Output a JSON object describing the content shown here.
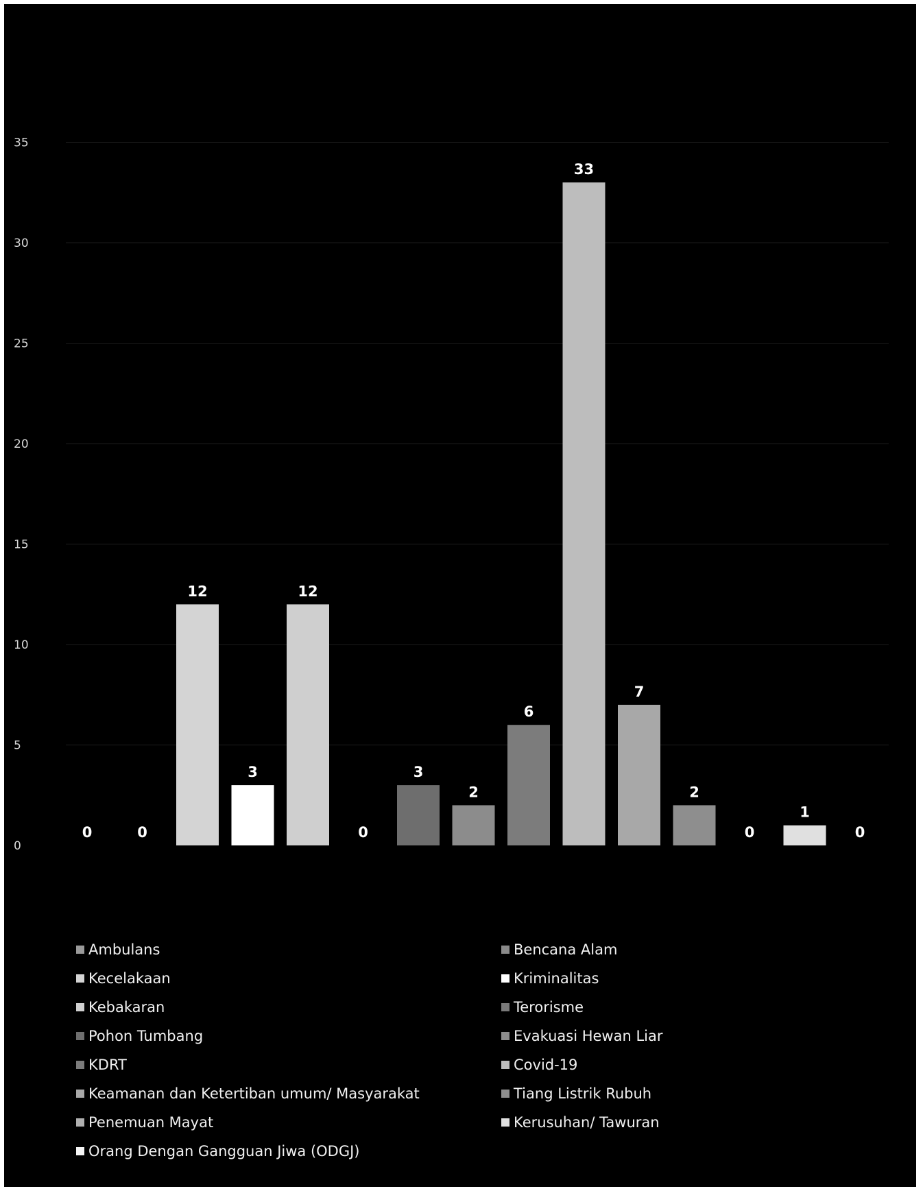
{
  "chart_data": {
    "type": "bar",
    "title": "",
    "xlabel": "",
    "ylabel": "",
    "ylim": [
      0,
      40
    ],
    "yticks": [
      0,
      5,
      10,
      15,
      20,
      25,
      30,
      35
    ],
    "grid": true,
    "legend_position": "bottom",
    "categories": [
      "Ambulans",
      "Bencana Alam",
      "Kecelakaan",
      "Kriminalitas",
      "Kebakaran",
      "Terorisme",
      "Pohon Tumbang",
      "Evakuasi Hewan Liar",
      "KDRT",
      "Covid-19",
      "Keamanan dan Ketertiban umum/ Masyarakat",
      "Tiang Listrik Rubuh",
      "Penemuan Mayat",
      "Kerusuhan/ Tawuran",
      "Orang Dengan Gangguan Jiwa (ODGJ)"
    ],
    "values": [
      0,
      0,
      12,
      3,
      12,
      0,
      3,
      2,
      6,
      33,
      7,
      2,
      0,
      1,
      0
    ],
    "colors": [
      "#9a9a9a",
      "#8a8a8a",
      "#d4d4d4",
      "#ffffff",
      "#cfcfcf",
      "#7a7a7a",
      "#6e6e6e",
      "#8c8c8c",
      "#7c7c7c",
      "#bdbdbd",
      "#a8a8a8",
      "#8e8e8e",
      "#b0b0b0",
      "#e0e0e0",
      "#f5f5f5"
    ]
  }
}
